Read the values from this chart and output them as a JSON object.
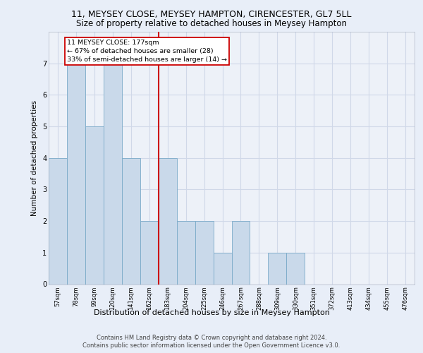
{
  "title1": "11, MEYSEY CLOSE, MEYSEY HAMPTON, CIRENCESTER, GL7 5LL",
  "title2": "Size of property relative to detached houses in Meysey Hampton",
  "xlabel": "Distribution of detached houses by size in Meysey Hampton",
  "ylabel": "Number of detached properties",
  "categories": [
    "57sqm",
    "78sqm",
    "99sqm",
    "120sqm",
    "141sqm",
    "162sqm",
    "183sqm",
    "204sqm",
    "225sqm",
    "246sqm",
    "267sqm",
    "288sqm",
    "309sqm",
    "330sqm",
    "351sqm",
    "372sqm",
    "413sqm",
    "434sqm",
    "455sqm",
    "476sqm"
  ],
  "values": [
    4,
    7,
    5,
    7,
    4,
    2,
    4,
    2,
    2,
    1,
    2,
    0,
    1,
    1,
    0,
    0,
    0,
    0,
    0,
    0
  ],
  "bar_color": "#c9d9ea",
  "bar_edge_color": "#7aaac8",
  "highlight_line_color": "#cc0000",
  "highlight_bar_index": 6,
  "annotation_line1": "11 MEYSEY CLOSE: 177sqm",
  "annotation_line2": "← 67% of detached houses are smaller (28)",
  "annotation_line3": "33% of semi-detached houses are larger (14) →",
  "annotation_box_color": "#cc0000",
  "ylim": [
    0,
    8
  ],
  "yticks": [
    0,
    1,
    2,
    3,
    4,
    5,
    6,
    7
  ],
  "footer1": "Contains HM Land Registry data © Crown copyright and database right 2024.",
  "footer2": "Contains public sector information licensed under the Open Government Licence v3.0.",
  "bg_color": "#e8eef8",
  "plot_bg_color": "#edf1f8",
  "grid_color": "#d0d8e8",
  "title1_fontsize": 9,
  "title2_fontsize": 8.5,
  "ylabel_fontsize": 7.5,
  "xlabel_fontsize": 8,
  "tick_fontsize": 6,
  "footer_fontsize": 6
}
